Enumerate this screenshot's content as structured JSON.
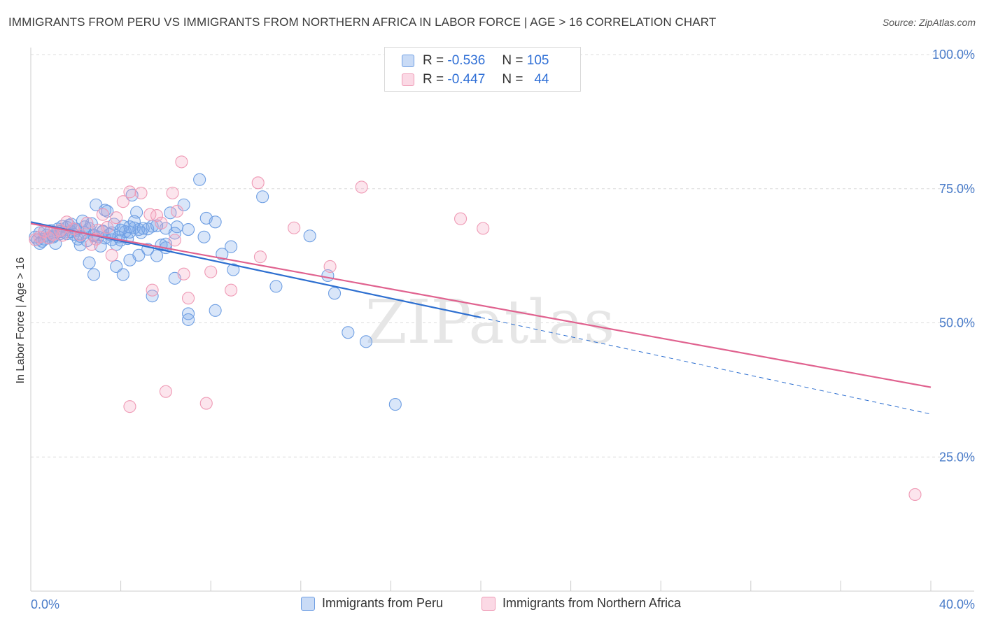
{
  "title": "IMMIGRANTS FROM PERU VS IMMIGRANTS FROM NORTHERN AFRICA IN LABOR FORCE | AGE > 16 CORRELATION CHART",
  "source": "Source: ZipAtlas.com",
  "watermark": "ZIPatlas",
  "legend": {
    "row1": {
      "r_label": "R =",
      "r_value": "-0.536",
      "n_label": "N =",
      "n_value": "105"
    },
    "row2": {
      "r_label": "R =",
      "r_value": "-0.447",
      "n_label": "N =",
      "n_value": "44"
    }
  },
  "colors": {
    "peru": "#6f9fe3",
    "peru_fill": "rgba(120,166,232,0.28)",
    "peru_line": "#2d6fd0",
    "nafrica": "#ef9ab5",
    "nafrica_fill": "rgba(245,160,190,0.28)",
    "nafrica_line": "#e0628f",
    "axis_text": "#4a7cc9"
  },
  "chart_data": {
    "type": "scatter",
    "title": "IMMIGRANTS FROM PERU VS IMMIGRANTS FROM NORTHERN AFRICA IN LABOR FORCE | AGE > 16 CORRELATION CHART",
    "xlabel": "",
    "ylabel": "In Labor Force | Age > 16",
    "xlim": [
      0,
      40
    ],
    "ylim": [
      0,
      100
    ],
    "x_tick_labels": [
      "0.0%",
      "40.0%"
    ],
    "y_ticks": [
      25,
      50,
      75,
      100
    ],
    "y_tick_labels": [
      "25.0%",
      "50.0%",
      "75.0%",
      "100.0%"
    ],
    "grid": true,
    "series": [
      {
        "name": "Immigrants from Peru",
        "r": -0.536,
        "n": 105,
        "trend": {
          "x0": 0,
          "y0": 68.8,
          "x1": 20,
          "y1": 51.0,
          "dashed_to_x": 40,
          "dashed_to_y": 33.0
        },
        "points": [
          [
            0.2,
            66.0
          ],
          [
            0.3,
            65.5
          ],
          [
            0.4,
            66.8
          ],
          [
            0.5,
            65.2
          ],
          [
            0.6,
            67.0
          ],
          [
            0.7,
            66.3
          ],
          [
            0.8,
            65.8
          ],
          [
            0.9,
            67.2
          ],
          [
            1.0,
            66.0
          ],
          [
            1.1,
            64.8
          ],
          [
            1.2,
            67.5
          ],
          [
            1.3,
            66.6
          ],
          [
            1.4,
            68.0
          ],
          [
            1.5,
            66.9
          ],
          [
            1.6,
            67.8
          ],
          [
            1.7,
            68.2
          ],
          [
            1.8,
            67.0
          ],
          [
            1.9,
            66.5
          ],
          [
            2.0,
            67.5
          ],
          [
            2.1,
            65.6
          ],
          [
            2.2,
            64.5
          ],
          [
            2.3,
            69.0
          ],
          [
            2.4,
            66.8
          ],
          [
            2.5,
            65.3
          ],
          [
            2.6,
            67.6
          ],
          [
            2.7,
            68.5
          ],
          [
            2.8,
            66.2
          ],
          [
            2.9,
            72.0
          ],
          [
            3.0,
            66.0
          ],
          [
            3.1,
            64.3
          ],
          [
            3.2,
            67.0
          ],
          [
            3.3,
            65.8
          ],
          [
            3.4,
            70.8
          ],
          [
            3.5,
            66.5
          ],
          [
            3.6,
            65.5
          ],
          [
            3.7,
            68.4
          ],
          [
            3.8,
            64.6
          ],
          [
            3.9,
            66.0
          ],
          [
            4.0,
            67.3
          ],
          [
            4.1,
            68.0
          ],
          [
            4.2,
            67.0
          ],
          [
            4.3,
            65.7
          ],
          [
            4.4,
            66.9
          ],
          [
            4.5,
            73.8
          ],
          [
            4.6,
            67.7
          ],
          [
            4.7,
            70.6
          ],
          [
            4.8,
            67.4
          ],
          [
            4.9,
            66.8
          ],
          [
            5.0,
            67.6
          ],
          [
            5.2,
            67.5
          ],
          [
            5.4,
            68.0
          ],
          [
            5.6,
            62.5
          ],
          [
            5.8,
            64.5
          ],
          [
            6.0,
            67.6
          ],
          [
            6.2,
            70.5
          ],
          [
            6.5,
            67.9
          ],
          [
            6.8,
            72.0
          ],
          [
            7.0,
            67.4
          ],
          [
            7.5,
            76.7
          ],
          [
            7.7,
            66.0
          ],
          [
            7.8,
            69.5
          ],
          [
            8.2,
            68.8
          ],
          [
            8.5,
            62.8
          ],
          [
            8.9,
            64.2
          ],
          [
            9.0,
            59.9
          ],
          [
            2.6,
            61.2
          ],
          [
            2.8,
            59.0
          ],
          [
            3.8,
            60.5
          ],
          [
            4.1,
            59.0
          ],
          [
            4.4,
            61.7
          ],
          [
            5.4,
            55.0
          ],
          [
            6.0,
            64.0
          ],
          [
            6.4,
            58.3
          ],
          [
            7.0,
            51.7
          ],
          [
            7.0,
            50.6
          ],
          [
            8.2,
            52.3
          ],
          [
            10.3,
            73.5
          ],
          [
            10.9,
            56.8
          ],
          [
            12.4,
            66.2
          ],
          [
            13.2,
            58.8
          ],
          [
            13.5,
            55.5
          ],
          [
            14.1,
            48.2
          ],
          [
            14.9,
            46.5
          ],
          [
            16.2,
            34.8
          ],
          [
            0.4,
            64.8
          ],
          [
            0.6,
            65.6
          ],
          [
            1.0,
            66.2
          ],
          [
            1.3,
            67.0
          ],
          [
            1.6,
            66.6
          ],
          [
            2.0,
            67.2
          ],
          [
            2.4,
            67.9
          ],
          [
            2.8,
            66.4
          ],
          [
            3.2,
            67.1
          ],
          [
            3.6,
            66.8
          ],
          [
            4.0,
            65.4
          ],
          [
            4.4,
            67.9
          ],
          [
            4.8,
            62.6
          ],
          [
            5.2,
            63.7
          ],
          [
            5.6,
            68.1
          ],
          [
            6.0,
            64.7
          ],
          [
            6.4,
            66.7
          ],
          [
            3.3,
            71.0
          ],
          [
            1.8,
            68.4
          ],
          [
            2.2,
            66.1
          ],
          [
            4.6,
            68.9
          ]
        ]
      },
      {
        "name": "Immigrants from Northern Africa",
        "r": -0.447,
        "n": 44,
        "trend": {
          "x0": 0,
          "y0": 68.5,
          "x1": 40,
          "y1": 38.0
        },
        "points": [
          [
            0.2,
            65.5
          ],
          [
            0.4,
            66.0
          ],
          [
            0.6,
            67.0
          ],
          [
            0.8,
            65.8
          ],
          [
            1.0,
            66.5
          ],
          [
            1.3,
            67.2
          ],
          [
            1.6,
            68.8
          ],
          [
            1.9,
            67.5
          ],
          [
            2.2,
            66.4
          ],
          [
            2.5,
            68.6
          ],
          [
            2.7,
            64.6
          ],
          [
            2.9,
            65.6
          ],
          [
            3.2,
            70.2
          ],
          [
            3.4,
            67.8
          ],
          [
            3.6,
            62.6
          ],
          [
            3.8,
            69.6
          ],
          [
            4.1,
            72.6
          ],
          [
            4.4,
            74.4
          ],
          [
            4.9,
            74.2
          ],
          [
            5.3,
            70.2
          ],
          [
            5.6,
            70.0
          ],
          [
            5.8,
            68.6
          ],
          [
            6.3,
            74.2
          ],
          [
            6.5,
            70.8
          ],
          [
            6.7,
            80.0
          ],
          [
            6.8,
            59.1
          ],
          [
            7.0,
            54.6
          ],
          [
            5.4,
            56.1
          ],
          [
            6.4,
            65.4
          ],
          [
            8.0,
            59.5
          ],
          [
            8.9,
            56.1
          ],
          [
            10.1,
            76.1
          ],
          [
            10.2,
            62.3
          ],
          [
            11.7,
            67.7
          ],
          [
            13.3,
            60.5
          ],
          [
            14.7,
            75.3
          ],
          [
            19.1,
            69.4
          ],
          [
            20.1,
            67.6
          ],
          [
            4.4,
            34.4
          ],
          [
            6.0,
            37.2
          ],
          [
            7.8,
            35.0
          ],
          [
            39.3,
            18.0
          ],
          [
            1.4,
            66.3
          ],
          [
            3.0,
            67.3
          ]
        ]
      }
    ]
  },
  "bottom_legend": {
    "item1": "Immigrants from Peru",
    "item2": "Immigrants from Northern Africa"
  }
}
